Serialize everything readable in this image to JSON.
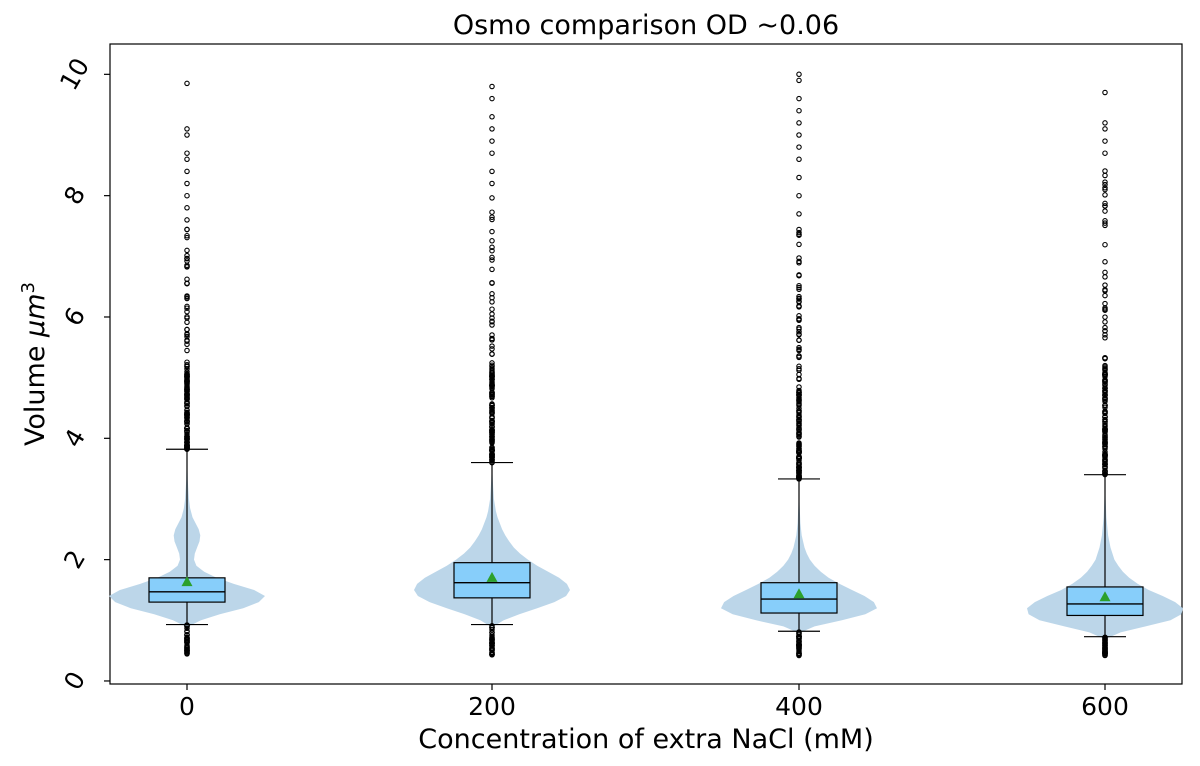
{
  "chart_data": {
    "type": "violin+box",
    "title": "Osmo comparison OD ~0.06",
    "xlabel": "Concentration of extra NaCl (mM)",
    "ylabel": "Volume",
    "ylabel_unit": "μm",
    "ylabel_unit_exp": "3",
    "ylim": [
      -0.05,
      10.5
    ],
    "yticks": [
      0,
      2,
      4,
      6,
      8,
      10
    ],
    "ytick_labels": [
      "0",
      "2",
      "4",
      "6",
      "8",
      "10"
    ],
    "categories": [
      "0",
      "200",
      "400",
      "600"
    ],
    "colors": {
      "violin": "#b8d4e8",
      "box_fill": "#87cefa",
      "box_edge": "#000000",
      "mean_marker": "#2ca02c",
      "outlier_edge": "#000000"
    },
    "grid": false,
    "groups": [
      {
        "category": "0",
        "whisker_low": 0.93,
        "q1": 1.3,
        "median": 1.47,
        "q3": 1.7,
        "whisker_high": 3.82,
        "mean": 1.63,
        "violin_profile": [
          [
            0.9,
            0.02
          ],
          [
            1.0,
            0.18
          ],
          [
            1.1,
            0.42
          ],
          [
            1.2,
            0.72
          ],
          [
            1.3,
            0.92
          ],
          [
            1.4,
            1.0
          ],
          [
            1.5,
            0.86
          ],
          [
            1.6,
            0.6
          ],
          [
            1.7,
            0.38
          ],
          [
            1.8,
            0.22
          ],
          [
            1.9,
            0.12
          ],
          [
            2.0,
            0.09
          ],
          [
            2.1,
            0.1
          ],
          [
            2.2,
            0.13
          ],
          [
            2.3,
            0.16
          ],
          [
            2.4,
            0.17
          ],
          [
            2.5,
            0.15
          ],
          [
            2.6,
            0.11
          ],
          [
            2.7,
            0.07
          ],
          [
            2.85,
            0.04
          ],
          [
            3.0,
            0.025
          ],
          [
            3.3,
            0.01
          ],
          [
            3.6,
            0.004
          ],
          [
            3.82,
            0.0
          ]
        ],
        "outliers_low_range": [
          0.42,
          0.93
        ],
        "outliers_high_range": [
          3.82,
          7.5
        ],
        "outliers_high_sparse": [
          7.6,
          7.8,
          8.0,
          8.2,
          8.4,
          8.6,
          8.7,
          9.0,
          9.1,
          9.85
        ]
      },
      {
        "category": "200",
        "whisker_low": 0.93,
        "q1": 1.37,
        "median": 1.62,
        "q3": 1.95,
        "whisker_high": 3.6,
        "mean": 1.7,
        "violin_profile": [
          [
            0.9,
            0.02
          ],
          [
            1.0,
            0.15
          ],
          [
            1.1,
            0.35
          ],
          [
            1.2,
            0.58
          ],
          [
            1.3,
            0.8
          ],
          [
            1.4,
            0.95
          ],
          [
            1.5,
            1.0
          ],
          [
            1.6,
            0.96
          ],
          [
            1.7,
            0.86
          ],
          [
            1.8,
            0.72
          ],
          [
            1.9,
            0.58
          ],
          [
            2.0,
            0.46
          ],
          [
            2.1,
            0.36
          ],
          [
            2.2,
            0.28
          ],
          [
            2.3,
            0.22
          ],
          [
            2.4,
            0.17
          ],
          [
            2.5,
            0.13
          ],
          [
            2.6,
            0.1
          ],
          [
            2.7,
            0.07
          ],
          [
            2.8,
            0.05
          ],
          [
            3.0,
            0.025
          ],
          [
            3.3,
            0.01
          ],
          [
            3.6,
            0.0
          ]
        ],
        "outliers_low_range": [
          0.42,
          0.93
        ],
        "outliers_high_range": [
          3.6,
          8.0
        ],
        "outliers_high_sparse": [
          8.2,
          8.4,
          8.7,
          8.9,
          9.1,
          9.3,
          9.6,
          9.8
        ]
      },
      {
        "category": "400",
        "whisker_low": 0.82,
        "q1": 1.12,
        "median": 1.35,
        "q3": 1.62,
        "whisker_high": 3.33,
        "mean": 1.43,
        "violin_profile": [
          [
            0.8,
            0.02
          ],
          [
            0.9,
            0.2
          ],
          [
            1.0,
            0.55
          ],
          [
            1.1,
            0.85
          ],
          [
            1.2,
            1.0
          ],
          [
            1.3,
            0.96
          ],
          [
            1.4,
            0.84
          ],
          [
            1.5,
            0.68
          ],
          [
            1.6,
            0.52
          ],
          [
            1.7,
            0.38
          ],
          [
            1.8,
            0.28
          ],
          [
            1.9,
            0.2
          ],
          [
            2.0,
            0.14
          ],
          [
            2.1,
            0.1
          ],
          [
            2.2,
            0.07
          ],
          [
            2.4,
            0.035
          ],
          [
            2.6,
            0.018
          ],
          [
            2.9,
            0.008
          ],
          [
            3.33,
            0.0
          ]
        ],
        "outliers_low_range": [
          0.42,
          0.82
        ],
        "outliers_high_range": [
          3.33,
          7.5
        ],
        "outliers_high_sparse": [
          7.7,
          8.0,
          8.3,
          8.6,
          8.8,
          9.0,
          9.2,
          9.4,
          9.6,
          9.9,
          10.0
        ]
      },
      {
        "category": "600",
        "whisker_low": 0.73,
        "q1": 1.08,
        "median": 1.27,
        "q3": 1.55,
        "whisker_high": 3.4,
        "mean": 1.38,
        "violin_profile": [
          [
            0.7,
            0.02
          ],
          [
            0.8,
            0.2
          ],
          [
            0.9,
            0.52
          ],
          [
            1.0,
            0.84
          ],
          [
            1.1,
            0.98
          ],
          [
            1.2,
            1.0
          ],
          [
            1.3,
            0.9
          ],
          [
            1.4,
            0.74
          ],
          [
            1.5,
            0.56
          ],
          [
            1.6,
            0.42
          ],
          [
            1.7,
            0.31
          ],
          [
            1.8,
            0.23
          ],
          [
            1.9,
            0.17
          ],
          [
            2.0,
            0.12
          ],
          [
            2.2,
            0.07
          ],
          [
            2.4,
            0.04
          ],
          [
            2.7,
            0.018
          ],
          [
            3.0,
            0.008
          ],
          [
            3.4,
            0.0
          ]
        ],
        "outliers_low_range": [
          0.42,
          0.73
        ],
        "outliers_high_range": [
          3.4,
          8.5
        ],
        "outliers_high_sparse": [
          8.7,
          8.9,
          9.1,
          9.2,
          9.7
        ]
      }
    ]
  }
}
